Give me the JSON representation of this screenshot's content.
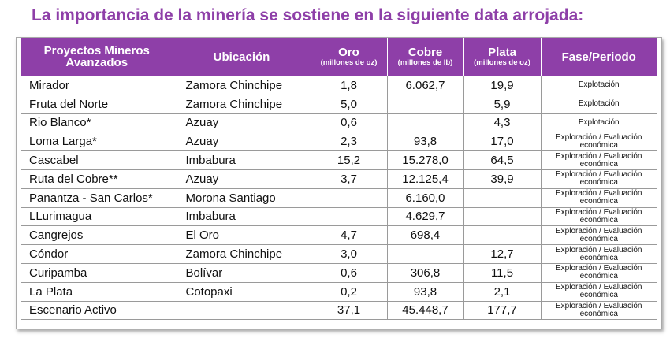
{
  "title": "La importancia de la minería se sostiene en la siguiente data arrojada:",
  "headers": {
    "project": "Proyectos Mineros Avanzados",
    "location": "Ubicación",
    "gold": "Oro",
    "gold_unit": "(millones de oz)",
    "copper": "Cobre",
    "copper_unit": "(millones de lb)",
    "silver": "Plata",
    "silver_unit": "(millones de oz)",
    "phase": "Fase/Periodo"
  },
  "rows": [
    {
      "project": "Mirador",
      "location": "Zamora Chinchipe",
      "gold": "1,8",
      "copper": "6.062,7",
      "silver": "19,9",
      "phase": "Explotación"
    },
    {
      "project": "Fruta del Norte",
      "location": "Zamora Chinchipe",
      "gold": "5,0",
      "copper": "",
      "silver": "5,9",
      "phase": "Explotación"
    },
    {
      "project": "Rio Blanco*",
      "location": "Azuay",
      "gold": "0,6",
      "copper": "",
      "silver": "4,3",
      "phase": "Explotación"
    },
    {
      "project": "Loma Larga*",
      "location": "Azuay",
      "gold": "2,3",
      "copper": "93,8",
      "silver": "17,0",
      "phase": "Exploración / Evaluación económica"
    },
    {
      "project": "Cascabel",
      "location": "Imbabura",
      "gold": "15,2",
      "copper": "15.278,0",
      "silver": "64,5",
      "phase": "Exploración / Evaluación económica"
    },
    {
      "project": "Ruta del Cobre**",
      "location": "Azuay",
      "gold": "3,7",
      "copper": "12.125,4",
      "silver": "39,9",
      "phase": "Exploración / Evaluación económica"
    },
    {
      "project": "Panantza - San Carlos*",
      "location": "Morona Santiago",
      "gold": "",
      "copper": "6.160,0",
      "silver": "",
      "phase": "Exploración / Evaluación económica"
    },
    {
      "project": "LLurimagua",
      "location": "Imbabura",
      "gold": "",
      "copper": "4.629,7",
      "silver": "",
      "phase": "Exploración / Evaluación económica"
    },
    {
      "project": "Cangrejos",
      "location": "El Oro",
      "gold": "4,7",
      "copper": "698,4",
      "silver": "",
      "phase": "Exploración / Evaluación económica"
    },
    {
      "project": "Cóndor",
      "location": "Zamora Chinchipe",
      "gold": "3,0",
      "copper": "",
      "silver": "12,7",
      "phase": "Exploración / Evaluación económica"
    },
    {
      "project": "Curipamba",
      "location": "Bolívar",
      "gold": "0,6",
      "copper": "306,8",
      "silver": "11,5",
      "phase": "Exploración / Evaluación económica"
    },
    {
      "project": "La Plata",
      "location": "Cotopaxi",
      "gold": "0,2",
      "copper": "93,8",
      "silver": "2,1",
      "phase": "Exploración / Evaluación económica"
    },
    {
      "project": "Escenario Activo",
      "location": "",
      "gold": "37,1",
      "copper": "45.448,7",
      "silver": "177,7",
      "phase": "Exploración / Evaluación económica"
    }
  ]
}
